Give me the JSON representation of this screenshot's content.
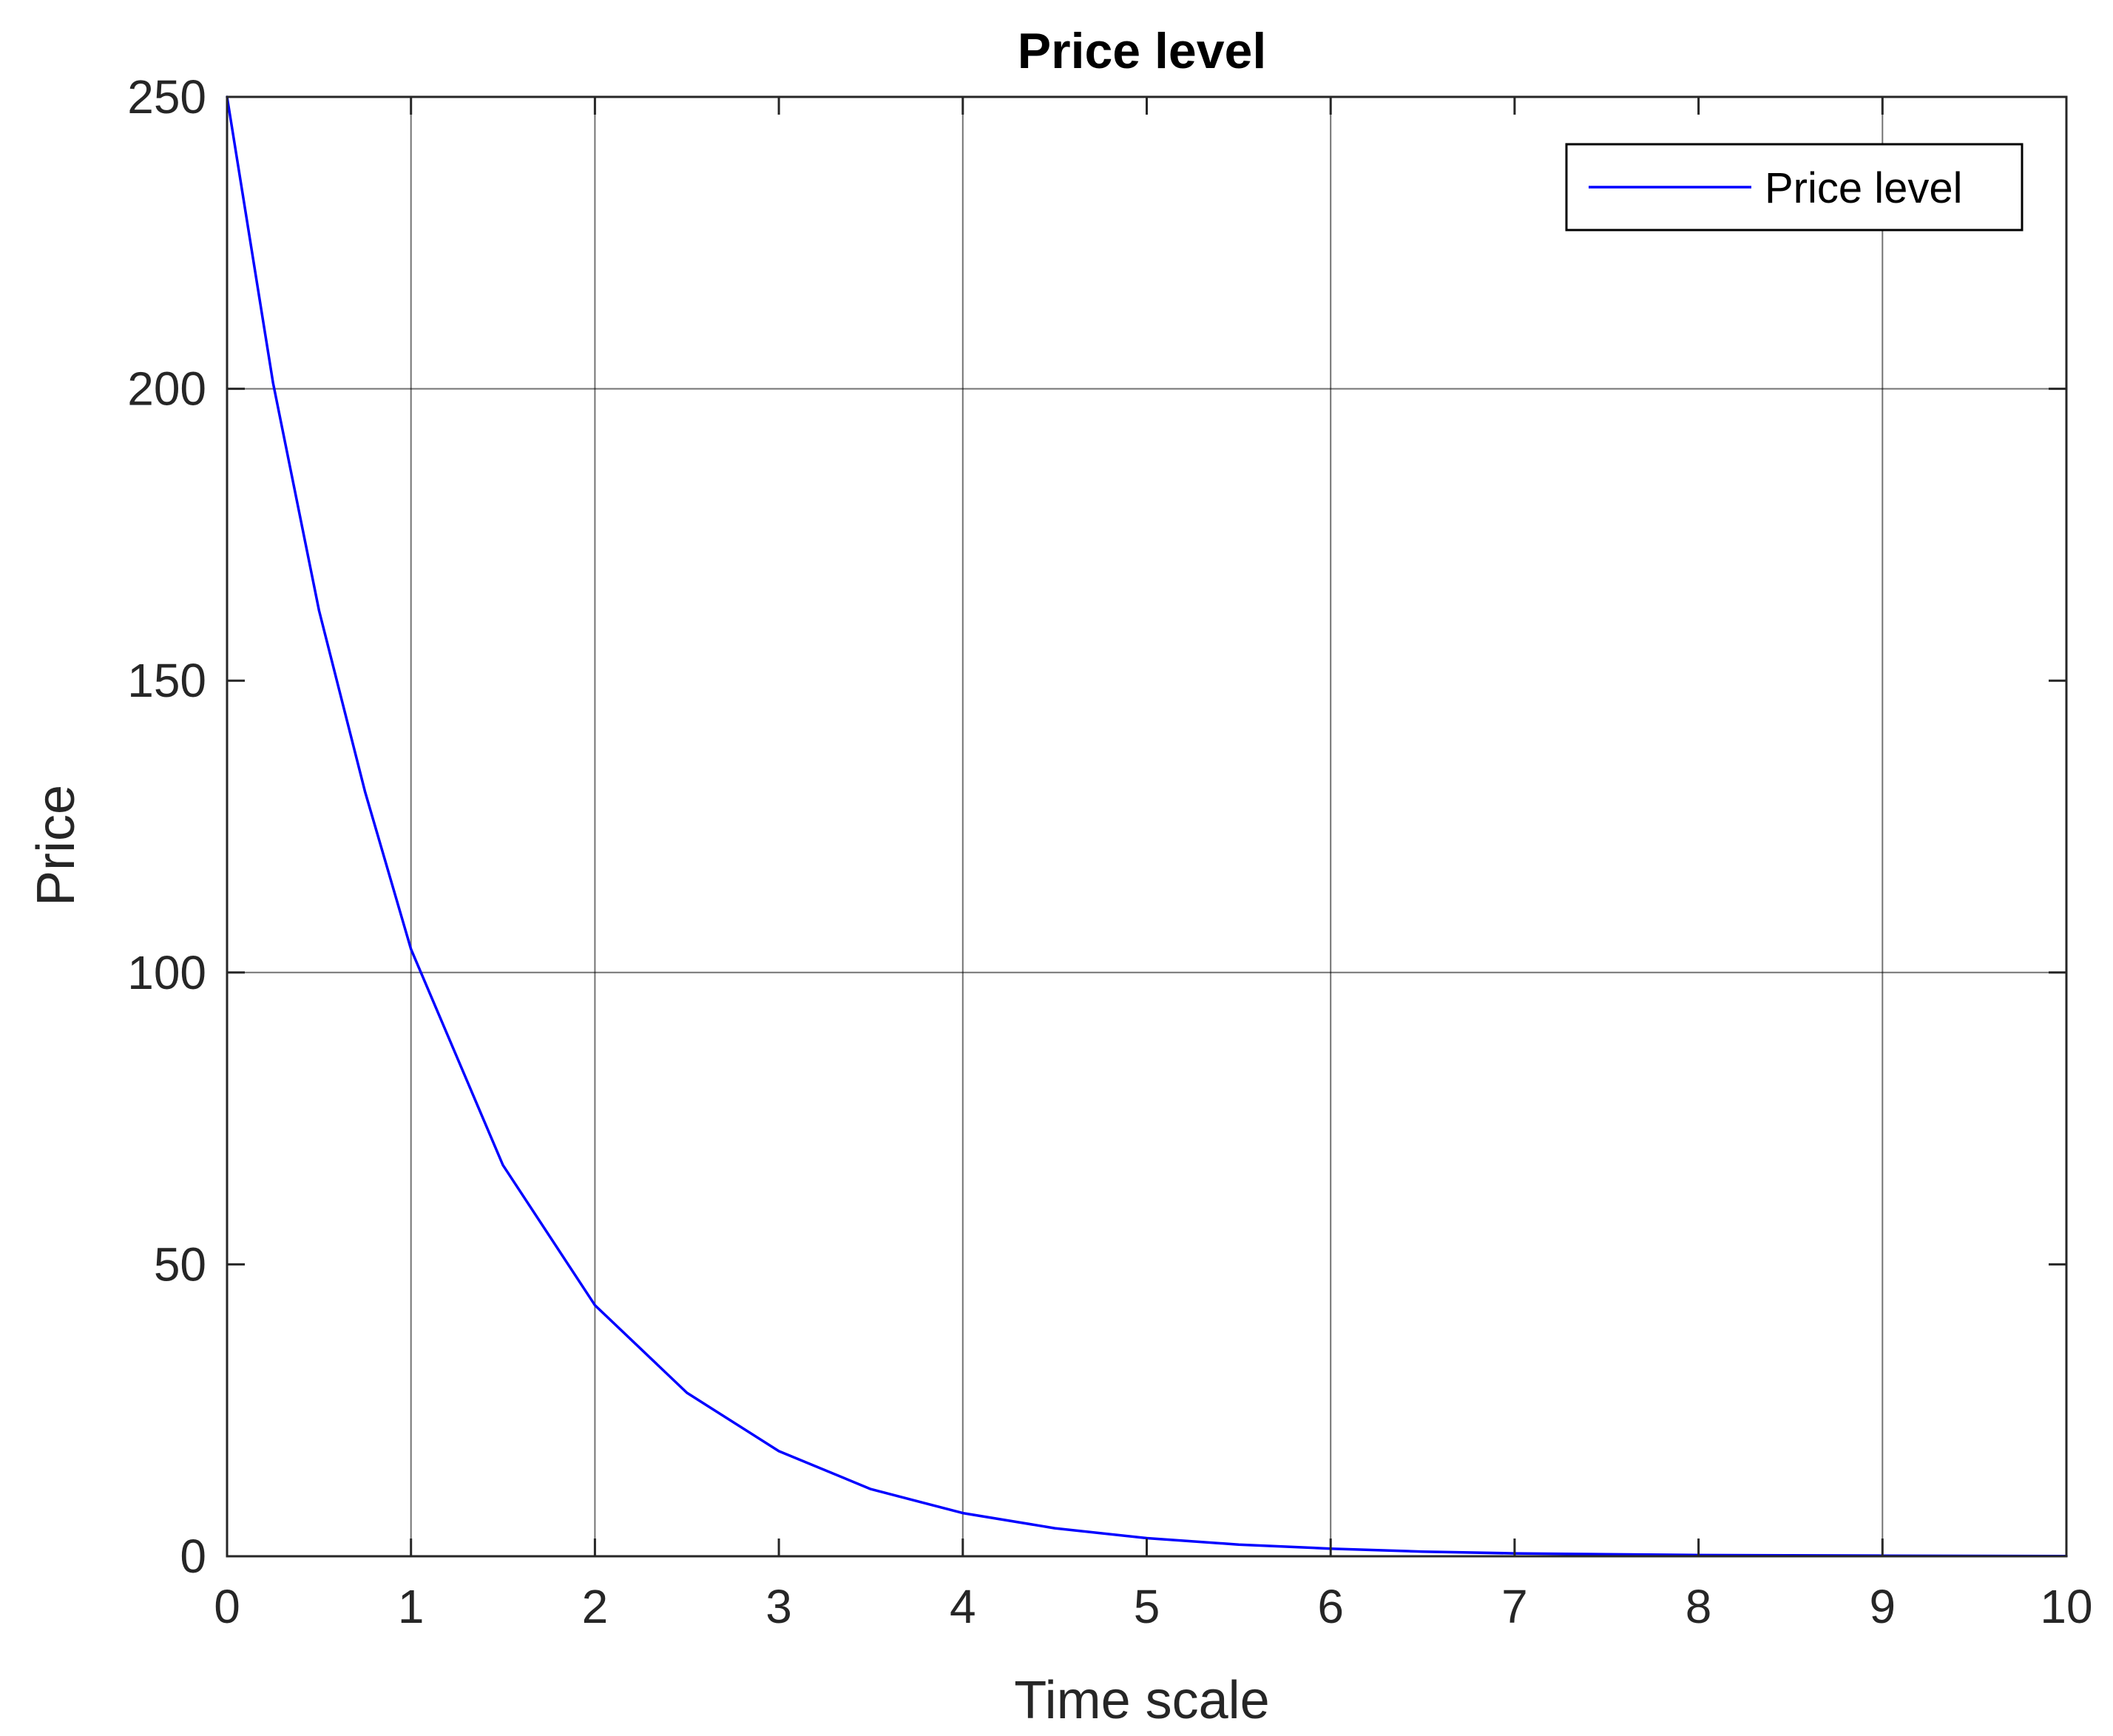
{
  "chart_data": {
    "type": "line",
    "title": "Price level",
    "xlabel": "Time scale",
    "ylabel": "Price",
    "xlim": [
      0,
      10
    ],
    "ylim": [
      0,
      250
    ],
    "x_ticks": [
      0,
      1,
      2,
      3,
      4,
      5,
      6,
      7,
      8,
      9,
      10
    ],
    "y_ticks": [
      0,
      50,
      100,
      150,
      200,
      250
    ],
    "x_grid_lines": [
      1,
      2,
      4,
      6,
      9
    ],
    "y_grid_lines": [
      100,
      200
    ],
    "legend": {
      "position": "top-right",
      "entries": [
        "Price level"
      ]
    },
    "colors": {
      "series": "#0000ff",
      "axes": "#262626",
      "grid": "#000000"
    },
    "series": [
      {
        "name": "Price level",
        "x": [
          0,
          0.25,
          0.5,
          0.75,
          1,
          1.5,
          2,
          2.5,
          3,
          3.5,
          4,
          4.5,
          5,
          5.5,
          6,
          6.5,
          7,
          7.5,
          8,
          8.5,
          9,
          9.5,
          10
        ],
        "y": [
          250,
          201,
          162,
          131,
          104,
          67,
          43,
          28,
          18,
          11.5,
          7.4,
          4.8,
          3.1,
          2.0,
          1.3,
          0.8,
          0.5,
          0.35,
          0.2,
          0.15,
          0.1,
          0.06,
          0.04
        ]
      }
    ]
  }
}
